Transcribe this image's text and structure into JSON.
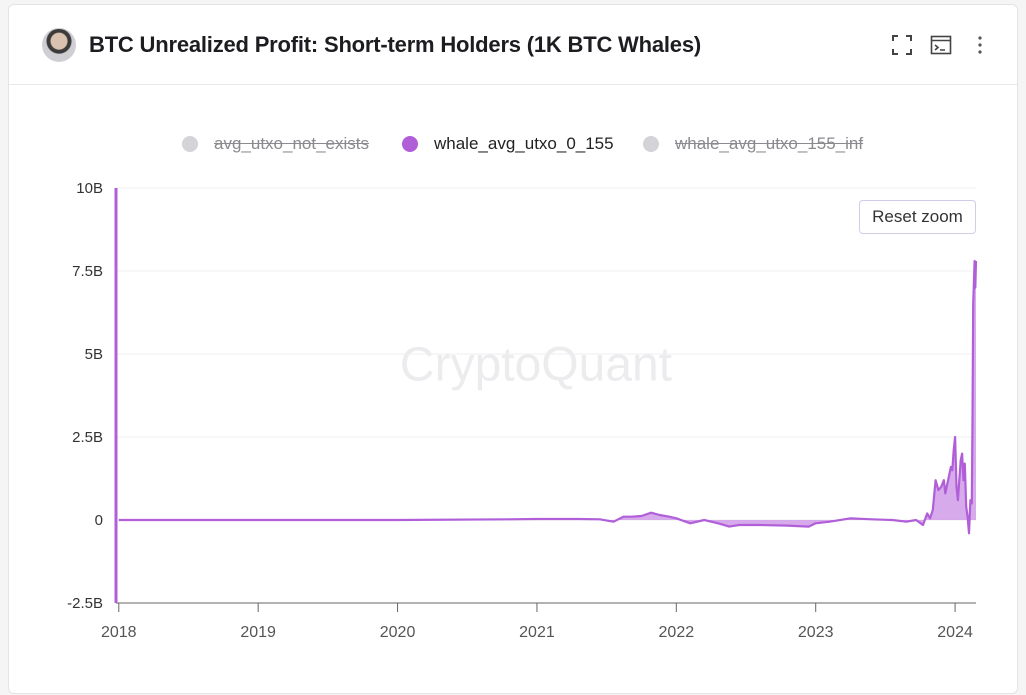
{
  "header": {
    "title": "BTC Unrealized Profit: Short-term Holders (1K BTC Whales)"
  },
  "toolbar": {
    "icons": [
      "fullscreen-icon",
      "terminal-icon",
      "more-vertical-icon"
    ]
  },
  "legend": [
    {
      "label": "avg_utxo_not_exists",
      "color": "#d3d3d8",
      "active": false
    },
    {
      "label": "whale_avg_utxo_0_155",
      "color": "#b05fd8",
      "active": true
    },
    {
      "label": "whale_avg_utxo_155_inf",
      "color": "#d3d3d8",
      "active": false
    }
  ],
  "reset_zoom_label": "Reset zoom",
  "watermark": "CryptoQuant",
  "colors": {
    "series": "#b05fd8",
    "fill": "#c98ee4",
    "grid": "#efeff2"
  },
  "chart_data": {
    "type": "area",
    "title": "BTC Unrealized Profit: Short-term Holders (1K BTC Whales)",
    "xlabel": "",
    "ylabel": "",
    "ylim": [
      -2.5,
      10
    ],
    "yticks": [
      -2.5,
      0,
      2.5,
      5,
      7.5,
      10
    ],
    "ytick_labels": [
      "-2.5B",
      "0",
      "2.5B",
      "5B",
      "7.5B",
      "10B"
    ],
    "xlim": [
      2017.98,
      2024.15
    ],
    "xticks": [
      2018,
      2019,
      2020,
      2021,
      2022,
      2023,
      2024
    ],
    "xtick_labels": [
      "2018",
      "2019",
      "2020",
      "2021",
      "2022",
      "2023",
      "2024"
    ],
    "unit": "B",
    "series": [
      {
        "name": "whale_avg_utxo_0_155",
        "x": [
          2018.0,
          2019.0,
          2020.0,
          2020.8,
          2021.0,
          2021.3,
          2021.45,
          2021.55,
          2021.62,
          2021.68,
          2021.75,
          2021.82,
          2021.88,
          2021.95,
          2022.0,
          2022.1,
          2022.2,
          2022.3,
          2022.38,
          2022.45,
          2022.6,
          2022.8,
          2022.95,
          2023.0,
          2023.1,
          2023.25,
          2023.4,
          2023.55,
          2023.65,
          2023.72,
          2023.77,
          2023.8,
          2023.82,
          2023.84,
          2023.86,
          2023.88,
          2023.9,
          2023.92,
          2023.93,
          2023.95,
          2023.97,
          2023.98,
          2023.99,
          2024.0,
          2024.01,
          2024.02,
          2024.04,
          2024.05,
          2024.06,
          2024.07,
          2024.08,
          2024.09,
          2024.1,
          2024.11,
          2024.12,
          2024.125,
          2024.13,
          2024.14,
          2024.145,
          2024.15
        ],
        "values": [
          0,
          0,
          0,
          0.02,
          0.03,
          0.03,
          0.02,
          -0.05,
          0.1,
          0.1,
          0.12,
          0.22,
          0.15,
          0.1,
          0.05,
          -0.1,
          0.0,
          -0.1,
          -0.2,
          -0.15,
          -0.15,
          -0.17,
          -0.2,
          -0.1,
          -0.05,
          0.05,
          0.02,
          0.0,
          -0.05,
          0.0,
          -0.15,
          0.2,
          0.05,
          0.3,
          1.2,
          0.9,
          1.0,
          1.2,
          0.8,
          1.2,
          1.6,
          1.5,
          2.1,
          2.5,
          1.0,
          0.6,
          1.8,
          2.0,
          1.2,
          1.7,
          0.4,
          0.1,
          -0.4,
          0.6,
          0.5,
          3.0,
          6.5,
          7.8,
          7.0,
          7.8
        ]
      }
    ]
  }
}
